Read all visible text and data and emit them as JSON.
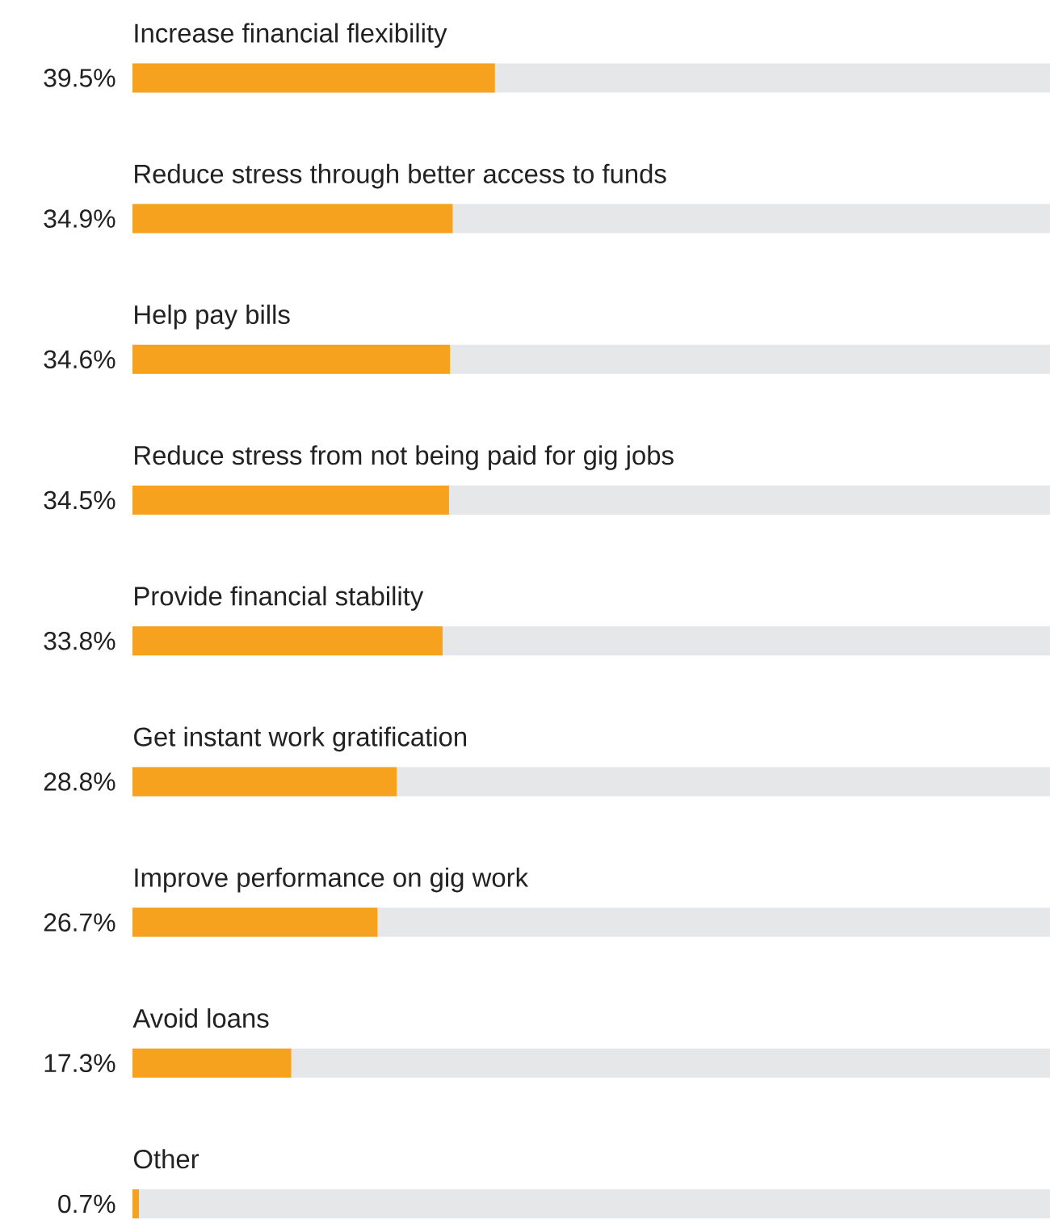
{
  "chart_data": {
    "type": "bar",
    "orientation": "horizontal",
    "categories": [
      "Increase financial flexibility",
      "Reduce stress through better access to funds",
      "Help pay bills",
      "Reduce stress from not being paid for gig jobs",
      "Provide financial stability",
      "Get instant work gratification",
      "Improve performance on gig work",
      "Avoid loans",
      "Other"
    ],
    "values": [
      39.5,
      34.9,
      34.6,
      34.5,
      33.8,
      28.8,
      26.7,
      17.3,
      0.7
    ],
    "value_labels": [
      "39.5%",
      "34.9%",
      "34.6%",
      "34.5%",
      "33.8%",
      "28.8%",
      "26.7%",
      "17.3%",
      "0.7%"
    ],
    "color": "#f7a21f",
    "xlim": [
      0,
      100
    ]
  }
}
